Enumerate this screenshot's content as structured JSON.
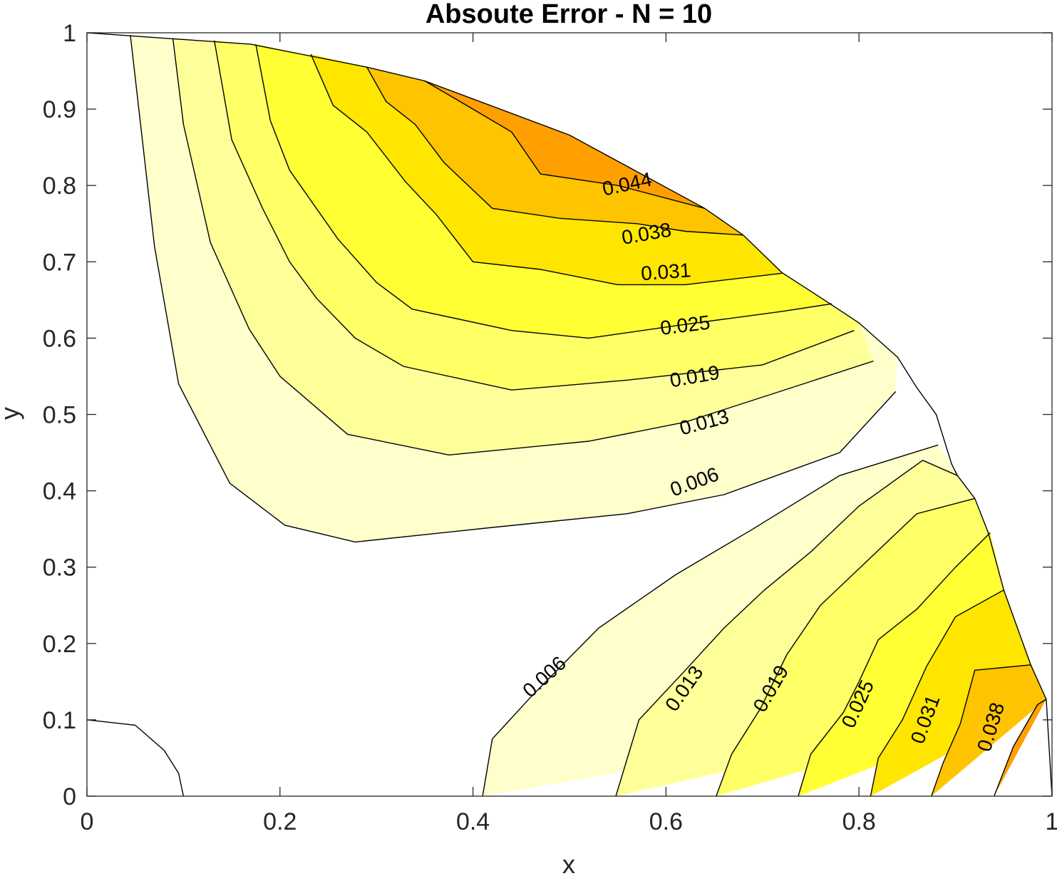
{
  "chart_data": {
    "type": "contour",
    "title": "Absoute Error - N = 10",
    "xlabel": "x",
    "ylabel": "y",
    "xlim": [
      0,
      1
    ],
    "ylim": [
      0,
      1
    ],
    "xticks": [
      "0",
      "0.2",
      "0.4",
      "0.6",
      "0.8",
      "1"
    ],
    "yticks": [
      "0",
      "0.1",
      "0.2",
      "0.3",
      "0.4",
      "0.5",
      "0.6",
      "0.7",
      "0.8",
      "0.9",
      "1"
    ],
    "xtick_values": [
      0,
      0.2,
      0.4,
      0.6,
      0.8,
      1
    ],
    "ytick_values": [
      0,
      0.1,
      0.2,
      0.3,
      0.4,
      0.5,
      0.6,
      0.7,
      0.8,
      0.9,
      1
    ],
    "grid": false,
    "domain": "quarter annulus, inner radius 0.1, outer radius 1",
    "levels": [
      0.006,
      0.013,
      0.019,
      0.025,
      0.031,
      0.038,
      0.044
    ],
    "fill_colors": [
      "#ffffff",
      "#ffffcc",
      "#ffff99",
      "#ffff66",
      "#ffff33",
      "#ffe600",
      "#ffc400",
      "#ffa000"
    ],
    "boundary_outer": [
      [
        1,
        0
      ],
      [
        0.994,
        0.127
      ],
      [
        0.978,
        0.172
      ],
      [
        0.95,
        0.27
      ],
      [
        0.934,
        0.345
      ],
      [
        0.92,
        0.39
      ],
      [
        0.902,
        0.42
      ],
      [
        0.896,
        0.435
      ],
      [
        0.88,
        0.5
      ],
      [
        0.86,
        0.535
      ],
      [
        0.84,
        0.575
      ],
      [
        0.8,
        0.62
      ],
      [
        0.77,
        0.645
      ],
      [
        0.72,
        0.686
      ],
      [
        0.68,
        0.735
      ],
      [
        0.64,
        0.77
      ],
      [
        0.5,
        0.866
      ],
      [
        0.35,
        0.937
      ],
      [
        0.29,
        0.955
      ],
      [
        0.17,
        0.985
      ],
      [
        0,
        1
      ]
    ],
    "boundary_inner": [
      [
        0,
        0.1
      ],
      [
        0.05,
        0.093
      ],
      [
        0.08,
        0.06
      ],
      [
        0.095,
        0.03
      ],
      [
        0.1,
        0
      ]
    ],
    "upper_lobe": {
      "bands": [
        {
          "level": 0.006,
          "path": [
            [
              0.045,
              0.997
            ],
            [
              0.07,
              0.72
            ],
            [
              0.095,
              0.54
            ],
            [
              0.148,
              0.41
            ],
            [
              0.205,
              0.355
            ],
            [
              0.278,
              0.333
            ],
            [
              0.42,
              0.352
            ],
            [
              0.56,
              0.37
            ],
            [
              0.66,
              0.395
            ],
            [
              0.78,
              0.45
            ],
            [
              0.838,
              0.53
            ]
          ]
        },
        {
          "level": 0.013,
          "path": [
            [
              0.089,
              0.993
            ],
            [
              0.1,
              0.88
            ],
            [
              0.128,
              0.725
            ],
            [
              0.168,
              0.612
            ],
            [
              0.2,
              0.55
            ],
            [
              0.27,
              0.474
            ],
            [
              0.375,
              0.447
            ],
            [
              0.52,
              0.465
            ],
            [
              0.62,
              0.49
            ],
            [
              0.73,
              0.535
            ],
            [
              0.815,
              0.57
            ]
          ]
        },
        {
          "level": 0.019,
          "path": [
            [
              0.132,
              0.99
            ],
            [
              0.15,
              0.86
            ],
            [
              0.182,
              0.77
            ],
            [
              0.21,
              0.7
            ],
            [
              0.238,
              0.652
            ],
            [
              0.278,
              0.6
            ],
            [
              0.328,
              0.563
            ],
            [
              0.44,
              0.532
            ],
            [
              0.56,
              0.545
            ],
            [
              0.7,
              0.565
            ],
            [
              0.795,
              0.61
            ]
          ]
        },
        {
          "level": 0.025,
          "path": [
            [
              0.175,
              0.985
            ],
            [
              0.19,
              0.885
            ],
            [
              0.21,
              0.82
            ],
            [
              0.26,
              0.73
            ],
            [
              0.3,
              0.673
            ],
            [
              0.337,
              0.638
            ],
            [
              0.44,
              0.61
            ],
            [
              0.52,
              0.6
            ],
            [
              0.62,
              0.618
            ],
            [
              0.72,
              0.635
            ],
            [
              0.772,
              0.645
            ]
          ]
        },
        {
          "level": 0.031,
          "path": [
            [
              0.232,
              0.972
            ],
            [
              0.255,
              0.905
            ],
            [
              0.29,
              0.87
            ],
            [
              0.33,
              0.805
            ],
            [
              0.362,
              0.762
            ],
            [
              0.4,
              0.7
            ],
            [
              0.47,
              0.69
            ],
            [
              0.55,
              0.67
            ],
            [
              0.62,
              0.67
            ],
            [
              0.72,
              0.685
            ]
          ]
        },
        {
          "level": 0.038,
          "path": [
            [
              0.29,
              0.955
            ],
            [
              0.31,
              0.91
            ],
            [
              0.34,
              0.88
            ],
            [
              0.37,
              0.83
            ],
            [
              0.42,
              0.77
            ],
            [
              0.49,
              0.757
            ],
            [
              0.57,
              0.75
            ],
            [
              0.62,
              0.74
            ],
            [
              0.68,
              0.735
            ]
          ]
        },
        {
          "level": 0.044,
          "path": [
            [
              0.35,
              0.937
            ],
            [
              0.4,
              0.9
            ],
            [
              0.44,
              0.87
            ],
            [
              0.47,
              0.815
            ],
            [
              0.55,
              0.8
            ],
            [
              0.64,
              0.77
            ]
          ]
        }
      ]
    },
    "lower_lobe": {
      "bands": [
        {
          "level": 0.006,
          "path": [
            [
              0.41,
              0
            ],
            [
              0.42,
              0.075
            ],
            [
              0.46,
              0.13
            ],
            [
              0.53,
              0.22
            ],
            [
              0.61,
              0.29
            ],
            [
              0.69,
              0.35
            ],
            [
              0.78,
              0.42
            ],
            [
              0.882,
              0.46
            ]
          ]
        },
        {
          "level": 0.013,
          "path": [
            [
              0.548,
              0
            ],
            [
              0.572,
              0.1
            ],
            [
              0.62,
              0.165
            ],
            [
              0.66,
              0.22
            ],
            [
              0.702,
              0.27
            ],
            [
              0.75,
              0.32
            ],
            [
              0.8,
              0.38
            ],
            [
              0.866,
              0.44
            ],
            [
              0.902,
              0.42
            ]
          ]
        },
        {
          "level": 0.019,
          "path": [
            [
              0.652,
              0
            ],
            [
              0.668,
              0.055
            ],
            [
              0.698,
              0.115
            ],
            [
              0.725,
              0.185
            ],
            [
              0.76,
              0.25
            ],
            [
              0.81,
              0.31
            ],
            [
              0.86,
              0.37
            ],
            [
              0.92,
              0.39
            ]
          ]
        },
        {
          "level": 0.025,
          "path": [
            [
              0.737,
              0
            ],
            [
              0.75,
              0.055
            ],
            [
              0.784,
              0.11
            ],
            [
              0.8,
              0.15
            ],
            [
              0.82,
              0.205
            ],
            [
              0.86,
              0.245
            ],
            [
              0.9,
              0.3
            ],
            [
              0.936,
              0.345
            ]
          ]
        },
        {
          "level": 0.031,
          "path": [
            [
              0.812,
              0
            ],
            [
              0.82,
              0.05
            ],
            [
              0.845,
              0.1
            ],
            [
              0.87,
              0.17
            ],
            [
              0.9,
              0.235
            ],
            [
              0.95,
              0.27
            ]
          ]
        },
        {
          "level": 0.038,
          "path": [
            [
              0.875,
              0
            ],
            [
              0.887,
              0.043
            ],
            [
              0.905,
              0.095
            ],
            [
              0.92,
              0.165
            ],
            [
              0.978,
              0.172
            ]
          ]
        },
        {
          "level": 0.044,
          "path": [
            [
              0.94,
              0
            ],
            [
              0.96,
              0.065
            ],
            [
              0.985,
              0.12
            ],
            [
              0.994,
              0.127
            ]
          ]
        }
      ]
    },
    "contour_labels": [
      {
        "text": "0.044",
        "x": 0.56,
        "y": 0.8,
        "angle": -12
      },
      {
        "text": "0.038",
        "x": 0.58,
        "y": 0.735,
        "angle": -10
      },
      {
        "text": "0.031",
        "x": 0.6,
        "y": 0.685,
        "angle": -4
      },
      {
        "text": "0.025",
        "x": 0.62,
        "y": 0.615,
        "angle": -7
      },
      {
        "text": "0.019",
        "x": 0.63,
        "y": 0.548,
        "angle": -10
      },
      {
        "text": "0.013",
        "x": 0.64,
        "y": 0.488,
        "angle": -15
      },
      {
        "text": "0.006",
        "x": 0.63,
        "y": 0.41,
        "angle": -20
      },
      {
        "text": "0.006",
        "x": 0.475,
        "y": 0.155,
        "angle": -42
      },
      {
        "text": "0.013",
        "x": 0.62,
        "y": 0.14,
        "angle": -55
      },
      {
        "text": "0.019",
        "x": 0.71,
        "y": 0.14,
        "angle": -60
      },
      {
        "text": "0.025",
        "x": 0.8,
        "y": 0.12,
        "angle": -65
      },
      {
        "text": "0.031",
        "x": 0.87,
        "y": 0.1,
        "angle": -70
      },
      {
        "text": "0.038",
        "x": 0.938,
        "y": 0.09,
        "angle": -73
      }
    ]
  }
}
